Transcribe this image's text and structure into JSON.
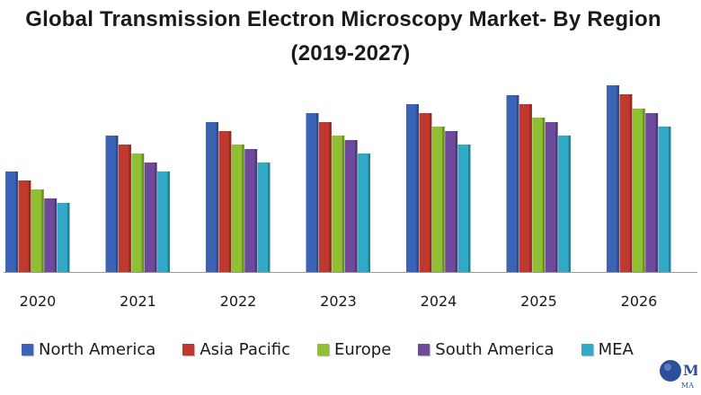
{
  "chart_data": {
    "type": "bar",
    "title_line1": "Global Transmission Electron Microscopy Market- By Region",
    "title_line2": "(2019-2027)",
    "xlabel": "",
    "ylabel": "",
    "categories": [
      "2020",
      "2021",
      "2022",
      "2023",
      "2024",
      "2025",
      "2026"
    ],
    "series": [
      {
        "name": "North America",
        "color": "#3b64b7",
        "values": [
          112,
          152,
          167,
          177,
          187,
          197,
          208
        ]
      },
      {
        "name": "Asia Pacific",
        "color": "#c0392f",
        "values": [
          102,
          142,
          157,
          167,
          177,
          187,
          198
        ]
      },
      {
        "name": "Europe",
        "color": "#8fbf32",
        "values": [
          92,
          132,
          142,
          152,
          162,
          172,
          182
        ]
      },
      {
        "name": "South America",
        "color": "#6d4a9c",
        "values": [
          82,
          122,
          137,
          147,
          157,
          167,
          177
        ]
      },
      {
        "name": "MEA",
        "color": "#31aac7",
        "values": [
          77,
          112,
          122,
          132,
          142,
          152,
          162
        ]
      }
    ],
    "ylim": [
      0,
      210
    ],
    "grid": false,
    "legend_position": "bottom"
  },
  "logo": {
    "text1": "M",
    "text2": "MA"
  }
}
